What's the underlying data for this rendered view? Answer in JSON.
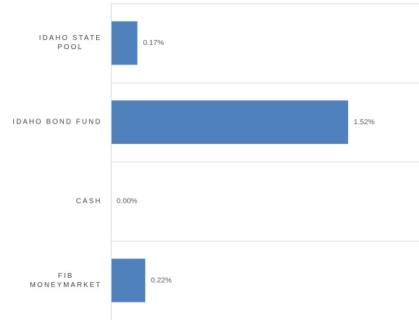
{
  "chart_data": {
    "type": "bar",
    "orientation": "horizontal",
    "categories": [
      "IDAHO STATE\nPOOL",
      "IDAHO BOND FUND",
      "CASH",
      "FIB\nMONEYMARKET"
    ],
    "values": [
      0.17,
      1.52,
      0,
      0.22
    ],
    "value_labels": [
      "0.17%",
      "1.52%",
      "0.00%",
      "0.22%"
    ],
    "color": "#4f81bd",
    "grid": true
  }
}
